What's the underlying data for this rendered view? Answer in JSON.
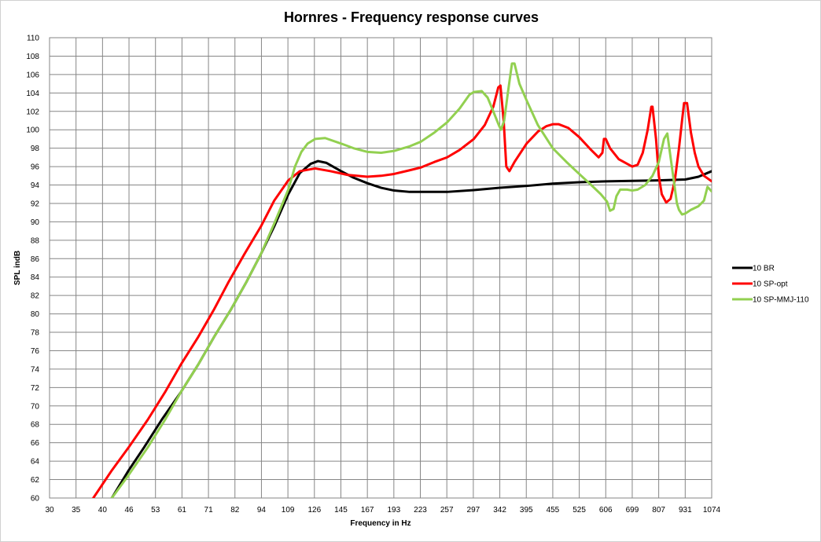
{
  "chart_data": {
    "type": "line",
    "title": "Hornres - Frequency response curves",
    "xlabel": "Frequency in Hz",
    "ylabel": "SPL indB",
    "ylim": [
      60,
      110
    ],
    "y_ticks": [
      60,
      62,
      64,
      66,
      68,
      70,
      72,
      74,
      76,
      78,
      80,
      82,
      84,
      86,
      88,
      90,
      92,
      94,
      96,
      98,
      100,
      102,
      104,
      106,
      108,
      110
    ],
    "x_scale": "log",
    "xlim": [
      30,
      1074
    ],
    "x_tick_labels": [
      "30",
      "35",
      "40",
      "46",
      "53",
      "61",
      "71",
      "82",
      "94",
      "109",
      "126",
      "145",
      "167",
      "193",
      "223",
      "257",
      "297",
      "342",
      "395",
      "455",
      "525",
      "606",
      "699",
      "807",
      "931",
      "1074"
    ],
    "grid": true,
    "legend_position": "right",
    "series": [
      {
        "name": "10 BR",
        "color": "#000000",
        "points": [
          [
            40,
            58.5
          ],
          [
            42,
            60
          ],
          [
            46,
            63
          ],
          [
            50,
            65.5
          ],
          [
            55,
            68.5
          ],
          [
            61,
            71.5
          ],
          [
            67,
            74.5
          ],
          [
            73,
            77.5
          ],
          [
            80,
            80.5
          ],
          [
            87,
            83.5
          ],
          [
            94,
            86.5
          ],
          [
            101,
            89.5
          ],
          [
            109,
            93
          ],
          [
            116,
            95.3
          ],
          [
            123,
            96.3
          ],
          [
            128,
            96.6
          ],
          [
            134,
            96.4
          ],
          [
            145,
            95.5
          ],
          [
            155,
            94.8
          ],
          [
            167,
            94.2
          ],
          [
            180,
            93.7
          ],
          [
            193,
            93.4
          ],
          [
            210,
            93.25
          ],
          [
            223,
            93.25
          ],
          [
            257,
            93.25
          ],
          [
            297,
            93.45
          ],
          [
            342,
            93.7
          ],
          [
            395,
            93.9
          ],
          [
            455,
            94.15
          ],
          [
            525,
            94.3
          ],
          [
            606,
            94.4
          ],
          [
            699,
            94.45
          ],
          [
            807,
            94.5
          ],
          [
            931,
            94.6
          ],
          [
            1000,
            94.9
          ],
          [
            1074,
            95.5
          ]
        ]
      },
      {
        "name": "10 SP-opt",
        "color": "#ff0000",
        "points": [
          [
            36,
            58.5
          ],
          [
            38,
            60
          ],
          [
            42,
            63
          ],
          [
            46,
            65.5
          ],
          [
            51,
            68.5
          ],
          [
            56,
            71.5
          ],
          [
            61,
            74.5
          ],
          [
            67,
            77.5
          ],
          [
            73,
            80.5
          ],
          [
            79,
            83.5
          ],
          [
            86,
            86.5
          ],
          [
            94,
            89.5
          ],
          [
            101,
            92.3
          ],
          [
            109,
            94.5
          ],
          [
            116,
            95.5
          ],
          [
            126,
            95.8
          ],
          [
            137,
            95.5
          ],
          [
            150,
            95.1
          ],
          [
            167,
            94.9
          ],
          [
            180,
            95
          ],
          [
            193,
            95.2
          ],
          [
            210,
            95.6
          ],
          [
            223,
            95.9
          ],
          [
            240,
            96.5
          ],
          [
            257,
            97
          ],
          [
            275,
            97.8
          ],
          [
            297,
            99
          ],
          [
            315,
            100.5
          ],
          [
            330,
            102.5
          ],
          [
            339,
            104.6
          ],
          [
            343,
            104.8
          ],
          [
            349,
            101
          ],
          [
            354,
            96
          ],
          [
            360,
            95.5
          ],
          [
            370,
            96.5
          ],
          [
            395,
            98.5
          ],
          [
            420,
            99.8
          ],
          [
            440,
            100.4
          ],
          [
            455,
            100.6
          ],
          [
            470,
            100.6
          ],
          [
            495,
            100.2
          ],
          [
            525,
            99.2
          ],
          [
            560,
            97.8
          ],
          [
            583,
            97
          ],
          [
            595,
            97.5
          ],
          [
            600,
            99
          ],
          [
            606,
            99
          ],
          [
            620,
            98
          ],
          [
            650,
            96.8
          ],
          [
            699,
            96
          ],
          [
            720,
            96.2
          ],
          [
            740,
            97.5
          ],
          [
            760,
            100
          ],
          [
            775,
            102.5
          ],
          [
            780,
            102.5
          ],
          [
            795,
            99
          ],
          [
            807,
            95
          ],
          [
            820,
            93
          ],
          [
            840,
            92.1
          ],
          [
            860,
            92.5
          ],
          [
            880,
            94.5
          ],
          [
            900,
            98
          ],
          [
            915,
            101
          ],
          [
            925,
            102.9
          ],
          [
            940,
            102.9
          ],
          [
            960,
            99.7
          ],
          [
            980,
            97.5
          ],
          [
            1000,
            96
          ],
          [
            1030,
            95
          ],
          [
            1074,
            94.4
          ]
        ]
      },
      {
        "name": "10 SP-MMJ-110",
        "color": "#92d050",
        "points": [
          [
            40,
            58.5
          ],
          [
            42,
            60
          ],
          [
            46,
            62.5
          ],
          [
            51,
            65.5
          ],
          [
            56,
            68.5
          ],
          [
            61,
            71.5
          ],
          [
            67,
            74.5
          ],
          [
            73,
            77.5
          ],
          [
            80,
            80.5
          ],
          [
            87,
            83.5
          ],
          [
            94,
            86.5
          ],
          [
            101,
            89.8
          ],
          [
            109,
            93.5
          ],
          [
            113,
            96
          ],
          [
            117,
            97.6
          ],
          [
            121,
            98.5
          ],
          [
            126,
            99
          ],
          [
            133,
            99.1
          ],
          [
            145,
            98.5
          ],
          [
            155,
            98
          ],
          [
            167,
            97.6
          ],
          [
            180,
            97.5
          ],
          [
            193,
            97.7
          ],
          [
            210,
            98.2
          ],
          [
            223,
            98.7
          ],
          [
            240,
            99.7
          ],
          [
            257,
            100.8
          ],
          [
            275,
            102.3
          ],
          [
            290,
            103.8
          ],
          [
            297,
            104.1
          ],
          [
            310,
            104.2
          ],
          [
            320,
            103.5
          ],
          [
            330,
            102
          ],
          [
            340,
            100.5
          ],
          [
            344,
            100
          ],
          [
            350,
            101
          ],
          [
            357,
            104
          ],
          [
            365,
            107.2
          ],
          [
            370,
            107.2
          ],
          [
            380,
            105
          ],
          [
            395,
            103.2
          ],
          [
            420,
            100.5
          ],
          [
            455,
            98
          ],
          [
            490,
            96.5
          ],
          [
            525,
            95.2
          ],
          [
            560,
            94
          ],
          [
            590,
            93
          ],
          [
            610,
            92.2
          ],
          [
            620,
            91.2
          ],
          [
            632,
            91.4
          ],
          [
            642,
            92.8
          ],
          [
            655,
            93.5
          ],
          [
            680,
            93.5
          ],
          [
            699,
            93.4
          ],
          [
            720,
            93.5
          ],
          [
            750,
            94
          ],
          [
            780,
            95
          ],
          [
            807,
            96.5
          ],
          [
            830,
            99
          ],
          [
            845,
            99.6
          ],
          [
            860,
            97
          ],
          [
            875,
            94.5
          ],
          [
            890,
            92
          ],
          [
            900,
            91.3
          ],
          [
            915,
            90.8
          ],
          [
            931,
            90.9
          ],
          [
            960,
            91.3
          ],
          [
            1000,
            91.7
          ],
          [
            1030,
            92.3
          ],
          [
            1050,
            93.8
          ],
          [
            1074,
            93.3
          ]
        ]
      }
    ]
  }
}
